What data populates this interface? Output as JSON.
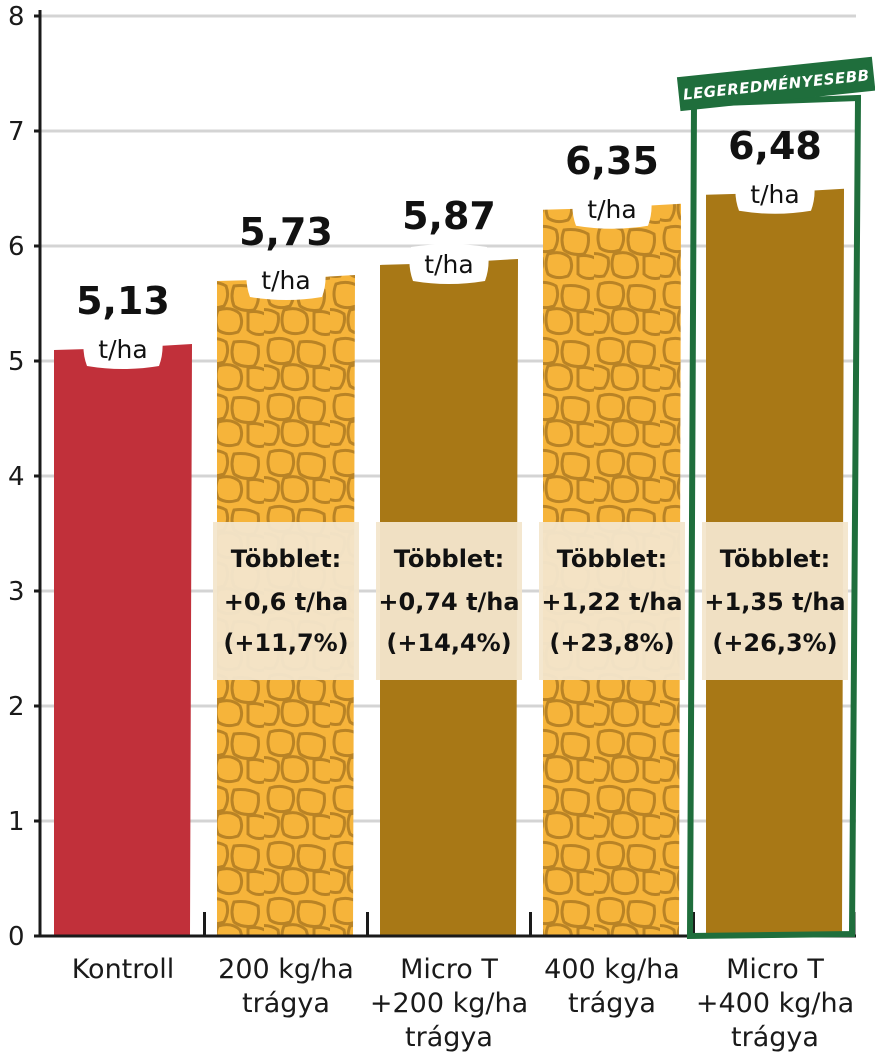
{
  "chart_data": {
    "type": "bar",
    "categories": [
      [
        "Kontroll"
      ],
      [
        "200 kg/ha",
        "trágya"
      ],
      [
        "Micro T",
        "+200 kg/ha",
        "trágya"
      ],
      [
        "400 kg/ha",
        "trágya"
      ],
      [
        "Micro T",
        "+400 kg/ha",
        "trágya"
      ]
    ],
    "values": [
      5.13,
      5.73,
      5.87,
      6.35,
      6.48
    ],
    "value_labels": [
      "5,13",
      "5,73",
      "5,87",
      "6,35",
      "6,48"
    ],
    "unit": "t/ha",
    "surplus_title": "Többlet:",
    "surplus": [
      null,
      "+0,6 t/ha",
      "+0,74 t/ha",
      "+1,22 t/ha",
      "+1,35 t/ha"
    ],
    "surplus_pct": [
      null,
      "(+11,7%)",
      "(+14,4%)",
      "(+23,8%)",
      "(+26,3%)"
    ],
    "yticks": [
      0,
      1,
      2,
      3,
      4,
      5,
      6,
      7,
      8
    ],
    "ylim": [
      0,
      8
    ],
    "grid": true,
    "highlight_index": 4,
    "highlight_label": "LEGEREDMÉNYESEBB",
    "colors": {
      "control": "#c1303a",
      "corn": "#f6b43a",
      "kernel_line": "#b98325",
      "bronze": "#a87816",
      "band": "#f3e6cc",
      "highlight": "#1f6e3c",
      "grid": "#d4d4d4",
      "axis": "#1a1a1a"
    },
    "fills": [
      "control",
      "corn",
      "bronze",
      "corn",
      "bronze"
    ]
  }
}
